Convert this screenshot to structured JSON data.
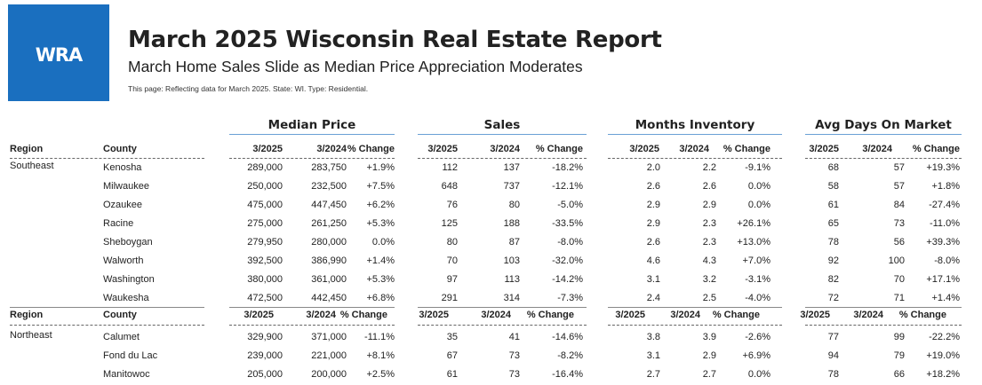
{
  "header": {
    "logo_text": "WRA",
    "title": "March 2025 Wisconsin Real Estate Report",
    "subtitle": "March Home Sales Slide as Median Price Appreciation Moderates",
    "note": "This page: Reflecting data for March 2025. State: WI. Type: Residential."
  },
  "groups": [
    "Median Price",
    "Sales",
    "Months Inventory",
    "Avg Days On Market"
  ],
  "columns": {
    "region": "Region",
    "county": "County",
    "cur": "3/2025",
    "prev": "3/2024",
    "change": "% Change"
  },
  "sections": [
    {
      "region": "Southeast",
      "rows": [
        {
          "county": "Kenosha",
          "v": [
            "289,000",
            "283,750",
            "+1.9%",
            "112",
            "137",
            "-18.2%",
            "2.0",
            "2.2",
            "-9.1%",
            "68",
            "57",
            "+19.3%"
          ]
        },
        {
          "county": "Milwaukee",
          "v": [
            "250,000",
            "232,500",
            "+7.5%",
            "648",
            "737",
            "-12.1%",
            "2.6",
            "2.6",
            "0.0%",
            "58",
            "57",
            "+1.8%"
          ]
        },
        {
          "county": "Ozaukee",
          "v": [
            "475,000",
            "447,450",
            "+6.2%",
            "76",
            "80",
            "-5.0%",
            "2.9",
            "2.9",
            "0.0%",
            "61",
            "84",
            "-27.4%"
          ]
        },
        {
          "county": "Racine",
          "v": [
            "275,000",
            "261,250",
            "+5.3%",
            "125",
            "188",
            "-33.5%",
            "2.9",
            "2.3",
            "+26.1%",
            "65",
            "73",
            "-11.0%"
          ]
        },
        {
          "county": "Sheboygan",
          "v": [
            "279,950",
            "280,000",
            "0.0%",
            "80",
            "87",
            "-8.0%",
            "2.6",
            "2.3",
            "+13.0%",
            "78",
            "56",
            "+39.3%"
          ]
        },
        {
          "county": "Walworth",
          "v": [
            "392,500",
            "386,990",
            "+1.4%",
            "70",
            "103",
            "-32.0%",
            "4.6",
            "4.3",
            "+7.0%",
            "92",
            "100",
            "-8.0%"
          ]
        },
        {
          "county": "Washington",
          "v": [
            "380,000",
            "361,000",
            "+5.3%",
            "97",
            "113",
            "-14.2%",
            "3.1",
            "3.2",
            "-3.1%",
            "82",
            "70",
            "+17.1%"
          ]
        },
        {
          "county": "Waukesha",
          "v": [
            "472,500",
            "442,450",
            "+6.8%",
            "291",
            "314",
            "-7.3%",
            "2.4",
            "2.5",
            "-4.0%",
            "72",
            "71",
            "+1.4%"
          ]
        }
      ]
    },
    {
      "region": "Northeast",
      "rows": [
        {
          "county": "Calumet",
          "v": [
            "329,900",
            "371,000",
            "-11.1%",
            "35",
            "41",
            "-14.6%",
            "3.8",
            "3.9",
            "-2.6%",
            "77",
            "99",
            "-22.2%"
          ]
        },
        {
          "county": "Fond du Lac",
          "v": [
            "239,000",
            "221,000",
            "+8.1%",
            "67",
            "73",
            "-8.2%",
            "3.1",
            "2.9",
            "+6.9%",
            "94",
            "79",
            "+19.0%"
          ]
        },
        {
          "county": "Manitowoc",
          "v": [
            "205,000",
            "200,000",
            "+2.5%",
            "61",
            "73",
            "-16.4%",
            "2.7",
            "2.7",
            "0.0%",
            "78",
            "66",
            "+18.2%"
          ]
        }
      ]
    }
  ],
  "colors": {
    "logo_bg": "#1a6fbf",
    "group_rule": "#6aa0d6"
  }
}
